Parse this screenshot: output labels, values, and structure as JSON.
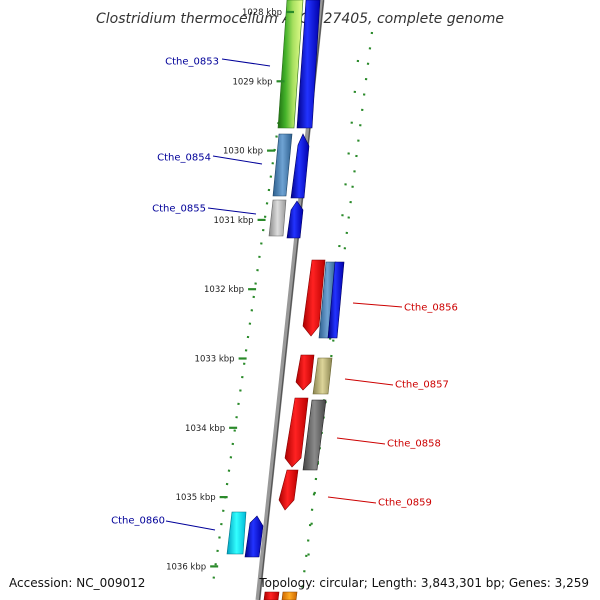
{
  "title": "Clostridium thermocellum ATCC 27405, complete genome",
  "footer": {
    "accession": "Accession: NC_009012",
    "summary": "Topology: circular; Length: 3,843,301 bp; Genes: 3,259"
  },
  "ticks": [
    {
      "label": "1028 kbp",
      "kbp": 1028
    },
    {
      "label": "1029 kbp",
      "kbp": 1029
    },
    {
      "label": "1030 kbp",
      "kbp": 1030
    },
    {
      "label": "1031 kbp",
      "kbp": 1031
    },
    {
      "label": "1032 kbp",
      "kbp": 1032
    },
    {
      "label": "1033 kbp",
      "kbp": 1033
    },
    {
      "label": "1034 kbp",
      "kbp": 1034
    },
    {
      "label": "1035 kbp",
      "kbp": 1035
    },
    {
      "label": "1036 kbp",
      "kbp": 1036
    }
  ],
  "gene_labels": [
    {
      "name": "Cthe_0853",
      "strand": "forward",
      "color": "#000099"
    },
    {
      "name": "Cthe_0854",
      "strand": "forward",
      "color": "#000099"
    },
    {
      "name": "Cthe_0855",
      "strand": "forward",
      "color": "#000099"
    },
    {
      "name": "Cthe_0856",
      "strand": "reverse",
      "color": "#cc0000"
    },
    {
      "name": "Cthe_0857",
      "strand": "reverse",
      "color": "#cc0000"
    },
    {
      "name": "Cthe_0858",
      "strand": "reverse",
      "color": "#cc0000"
    },
    {
      "name": "Cthe_0859",
      "strand": "reverse",
      "color": "#cc0000"
    },
    {
      "name": "Cthe_0860",
      "strand": "forward",
      "color": "#000099"
    }
  ],
  "colors": {
    "forward_cds": "#0000ee",
    "reverse_cds": "#ee0000",
    "backbone": "#888888",
    "gc_skew_dots": "#2a8a2a"
  }
}
